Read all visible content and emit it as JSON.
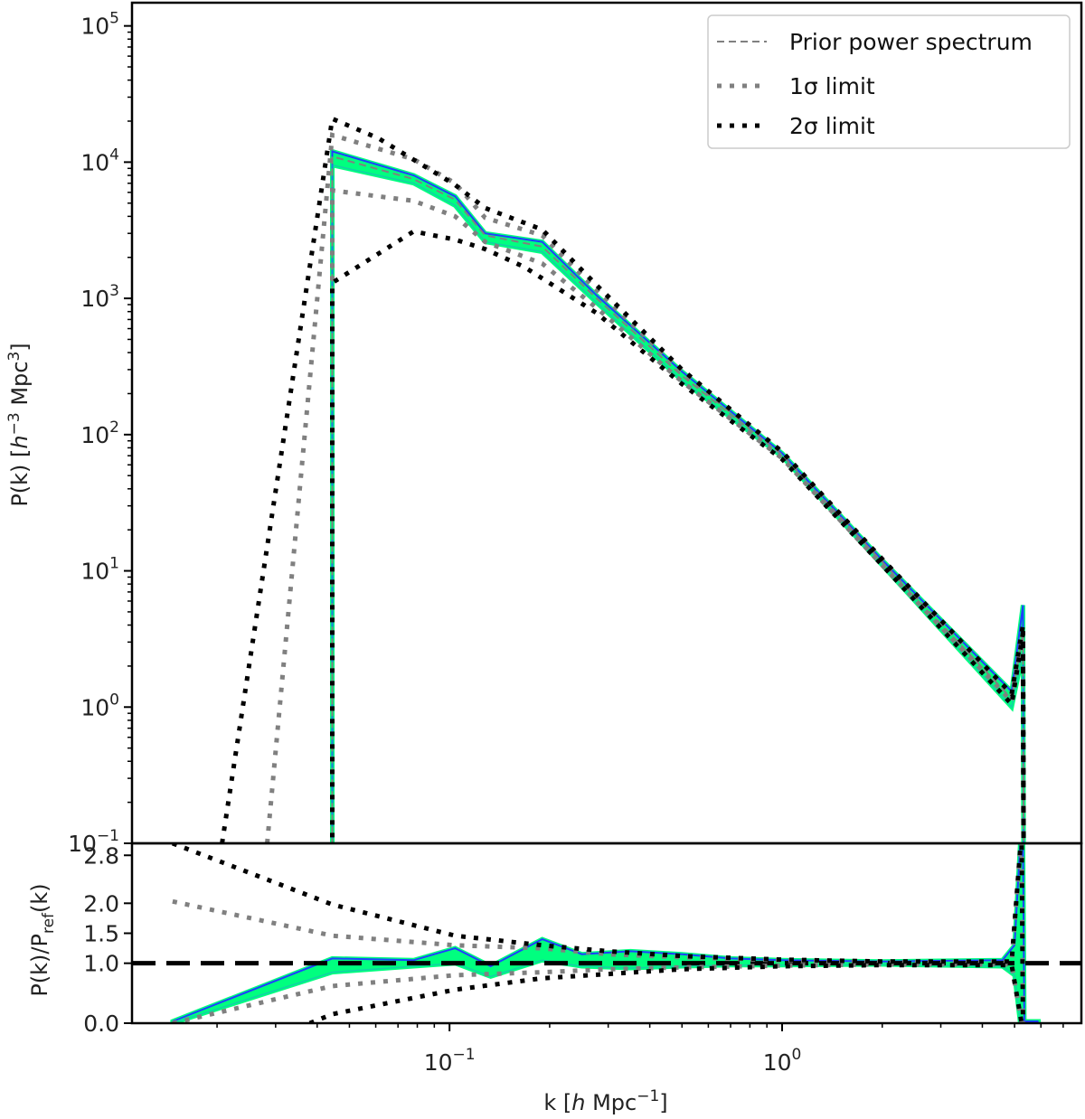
{
  "chart_data": [
    {
      "panel": "top",
      "type": "line",
      "xscale": "log",
      "yscale": "log",
      "xlim": [
        0.0111,
        7.94
      ],
      "ylim": [
        0.1,
        148000
      ],
      "xlabel": {
        "pre": "k [",
        "h": "h",
        "mid": " Mpc",
        "sup": "−1",
        "post": "]"
      },
      "ylabel": {
        "pre": "P(k) [",
        "h": "h",
        "sup1": "−3",
        "mid": " Mpc",
        "sup2": "3",
        "post": "]"
      },
      "yticks": [
        {
          "value": 100000,
          "base": "10",
          "exp": "5"
        },
        {
          "value": 10000,
          "base": "10",
          "exp": "4"
        },
        {
          "value": 1000,
          "base": "10",
          "exp": "3"
        },
        {
          "value": 100,
          "base": "10",
          "exp": "2"
        },
        {
          "value": 10,
          "base": "10",
          "exp": "1"
        },
        {
          "value": 1,
          "base": "10",
          "exp": "0"
        },
        {
          "value": 0.1,
          "base": "10",
          "exp": "−1"
        }
      ],
      "legend": {
        "placement": "top-right",
        "entries": [
          {
            "label": "Prior power spectrum",
            "style": "dashed",
            "color": "#808080"
          },
          {
            "label": "1σ limit",
            "style": "dotted",
            "color": "#808080"
          },
          {
            "label": "2σ limit",
            "style": "dotted",
            "color": "#000000"
          }
        ]
      },
      "samples_band": {
        "fill": "#00ff7f",
        "edge": "#1f3fff",
        "spike": "#add8e6",
        "upper": [
          [
            0.0444,
            0.001
          ],
          [
            0.0444,
            12000
          ],
          [
            0.078,
            8000
          ],
          [
            0.104,
            5600
          ],
          [
            0.128,
            3000
          ],
          [
            0.19,
            2600
          ],
          [
            0.277,
            1050
          ],
          [
            0.5,
            290
          ],
          [
            1,
            73
          ],
          [
            2,
            12
          ],
          [
            4.9,
            1.3
          ],
          [
            5.3,
            5.6
          ],
          [
            5.35,
            0.001
          ]
        ],
        "lower": [
          [
            0.0444,
            0.001
          ],
          [
            0.0444,
            9500
          ],
          [
            0.078,
            7000
          ],
          [
            0.104,
            4800
          ],
          [
            0.128,
            2600
          ],
          [
            0.19,
            2200
          ],
          [
            0.277,
            930
          ],
          [
            0.5,
            250
          ],
          [
            1,
            69
          ],
          [
            2,
            11
          ],
          [
            4.9,
            1.0
          ],
          [
            5.3,
            2.5
          ],
          [
            5.35,
            0.001
          ]
        ]
      },
      "series": [
        {
          "name": "Prior power spectrum",
          "style": "dashed",
          "color": "#808080",
          "points": [
            [
              0.0444,
              0.001
            ],
            [
              0.0444,
              11000
            ],
            [
              0.078,
              7500
            ],
            [
              0.104,
              5300
            ],
            [
              0.128,
              2900
            ],
            [
              0.19,
              2400
            ],
            [
              0.277,
              1000
            ],
            [
              0.5,
              270
            ],
            [
              1,
              71
            ],
            [
              2,
              11.6
            ],
            [
              4.9,
              1.15
            ],
            [
              5.3,
              3.5
            ],
            [
              5.35,
              0.001
            ]
          ]
        },
        {
          "name": "1σ limit",
          "style": "dotted",
          "color": "#808080",
          "points": [
            [
              0.0283,
              0.1
            ],
            [
              0.0444,
              15800
            ],
            [
              0.078,
              10500
            ],
            [
              0.104,
              7000
            ],
            [
              0.128,
              3900
            ],
            [
              0.19,
              2900
            ],
            [
              0.277,
              1150
            ],
            [
              0.5,
              290
            ],
            [
              1,
              74
            ],
            [
              2,
              12
            ],
            [
              4.9,
              1.2
            ],
            [
              5.3,
              3.5
            ],
            [
              5.35,
              0.001
            ]
          ]
        },
        {
          "name": "1σ limit",
          "style": "dotted",
          "color": "#808080",
          "points": [
            [
              0.0444,
              0.001
            ],
            [
              0.0444,
              6200
            ],
            [
              0.078,
              5200
            ],
            [
              0.104,
              4000
            ],
            [
              0.128,
              2600
            ],
            [
              0.19,
              1800
            ],
            [
              0.277,
              850
            ],
            [
              0.5,
              245
            ],
            [
              1,
              67
            ],
            [
              2,
              11
            ],
            [
              4.9,
              1.1
            ],
            [
              5.3,
              3.5
            ],
            [
              5.35,
              0.001
            ]
          ]
        },
        {
          "name": "2σ limit",
          "style": "dotted",
          "color": "#000000",
          "points": [
            [
              0.0207,
              0.1
            ],
            [
              0.0444,
              20800
            ],
            [
              0.061,
              15000
            ],
            [
              0.104,
              6800
            ],
            [
              0.128,
              4600
            ],
            [
              0.19,
              3200
            ],
            [
              0.277,
              1250
            ],
            [
              0.5,
              300
            ],
            [
              1,
              75
            ],
            [
              2,
              12.2
            ],
            [
              4.9,
              1.25
            ],
            [
              5.3,
              4
            ],
            [
              5.35,
              0.001
            ]
          ]
        },
        {
          "name": "2σ limit",
          "style": "dotted",
          "color": "#000000",
          "points": [
            [
              0.0444,
              0.001
            ],
            [
              0.0444,
              1300
            ],
            [
              0.078,
              3100
            ],
            [
              0.104,
              2700
            ],
            [
              0.128,
              2300
            ],
            [
              0.168,
              1700
            ],
            [
              0.277,
              780
            ],
            [
              0.5,
              235
            ],
            [
              1,
              66
            ],
            [
              2,
              11
            ],
            [
              4.9,
              1.05
            ],
            [
              5.3,
              3.5
            ],
            [
              5.35,
              0.001
            ]
          ]
        }
      ]
    },
    {
      "panel": "bottom",
      "type": "line",
      "xscale": "log",
      "yscale": "linear",
      "xlim": [
        0.0111,
        7.94
      ],
      "ylim": [
        0,
        3
      ],
      "ylabel": {
        "pre": "P(k)/P",
        "sub": "ref",
        "post": "(k)"
      },
      "xticks": [
        {
          "value": 0.1,
          "base": "10",
          "exp": "−1"
        },
        {
          "value": 1,
          "base": "10",
          "exp": "0"
        }
      ],
      "yticks": [
        {
          "value": 0.0,
          "label": "0.0"
        },
        {
          "value": 1.0,
          "label": "1.0"
        },
        {
          "value": 1.5,
          "label": "1.5"
        },
        {
          "value": 2.0,
          "label": "2.0"
        },
        {
          "value": 2.8,
          "label": "2.8"
        }
      ],
      "reference_line": {
        "value": 1.0,
        "style": "dashed",
        "color": "#000000"
      },
      "samples_band": {
        "fill": "#00ff7f",
        "edge": "#1f3fff",
        "upper": [
          [
            0.0147,
            0.03
          ],
          [
            0.0444,
            1.08
          ],
          [
            0.078,
            1.05
          ],
          [
            0.104,
            1.25
          ],
          [
            0.133,
            0.95
          ],
          [
            0.19,
            1.4
          ],
          [
            0.25,
            1.15
          ],
          [
            0.35,
            1.2
          ],
          [
            0.5,
            1.15
          ],
          [
            0.7,
            1.08
          ],
          [
            1,
            1.05
          ],
          [
            2,
            1.03
          ],
          [
            4.6,
            1.05
          ],
          [
            5.0,
            1.3
          ],
          [
            5.2,
            3.0
          ],
          [
            5.3,
            3.0
          ],
          [
            5.35,
            0.03
          ],
          [
            5.9,
            0.03
          ]
        ],
        "lower": [
          [
            0.0147,
            0
          ],
          [
            0.0444,
            0.85
          ],
          [
            0.078,
            0.95
          ],
          [
            0.104,
            1.0
          ],
          [
            0.133,
            0.78
          ],
          [
            0.19,
            1.05
          ],
          [
            0.25,
            0.95
          ],
          [
            0.35,
            0.92
          ],
          [
            0.5,
            0.95
          ],
          [
            0.7,
            0.97
          ],
          [
            1,
            0.97
          ],
          [
            2,
            0.98
          ],
          [
            4.6,
            0.95
          ],
          [
            5.0,
            0.8
          ],
          [
            5.2,
            0
          ],
          [
            5.3,
            0
          ],
          [
            5.9,
            0
          ]
        ]
      },
      "series": [
        {
          "name": "1σ limit",
          "style": "dotted",
          "color": "#808080",
          "points": [
            [
              0.0147,
              2.03
            ],
            [
              0.0444,
              1.46
            ],
            [
              0.104,
              1.3
            ],
            [
              0.19,
              1.25
            ],
            [
              0.3,
              1.15
            ],
            [
              0.5,
              1.1
            ],
            [
              1,
              1.05
            ],
            [
              2,
              1.02
            ],
            [
              4.9,
              1.02
            ],
            [
              5.25,
              3.2
            ],
            [
              5.3,
              0
            ]
          ]
        },
        {
          "name": "1σ limit",
          "style": "dotted",
          "color": "#808080",
          "points": [
            [
              0.0147,
              0
            ],
            [
              0.0444,
              0.62
            ],
            [
              0.104,
              0.8
            ],
            [
              0.19,
              0.85
            ],
            [
              0.3,
              0.9
            ],
            [
              0.5,
              0.93
            ],
            [
              1,
              0.96
            ],
            [
              2,
              0.98
            ],
            [
              4.9,
              0.98
            ],
            [
              5.25,
              0
            ]
          ]
        },
        {
          "name": "2σ limit",
          "style": "dotted",
          "color": "#000000",
          "points": [
            [
              0.0147,
              3.0
            ],
            [
              0.0444,
              1.98
            ],
            [
              0.104,
              1.46
            ],
            [
              0.19,
              1.3
            ],
            [
              0.3,
              1.2
            ],
            [
              0.5,
              1.12
            ],
            [
              1,
              1.06
            ],
            [
              2,
              1.03
            ],
            [
              4.9,
              1.03
            ],
            [
              5.25,
              3.2
            ],
            [
              5.3,
              0
            ]
          ]
        },
        {
          "name": "2σ limit",
          "style": "dotted",
          "color": "#000000",
          "points": [
            [
              0.038,
              0
            ],
            [
              0.0444,
              0.15
            ],
            [
              0.104,
              0.56
            ],
            [
              0.19,
              0.75
            ],
            [
              0.3,
              0.82
            ],
            [
              0.5,
              0.9
            ],
            [
              1,
              0.95
            ],
            [
              2,
              0.97
            ],
            [
              4.9,
              0.97
            ],
            [
              5.25,
              0
            ]
          ]
        }
      ]
    }
  ]
}
